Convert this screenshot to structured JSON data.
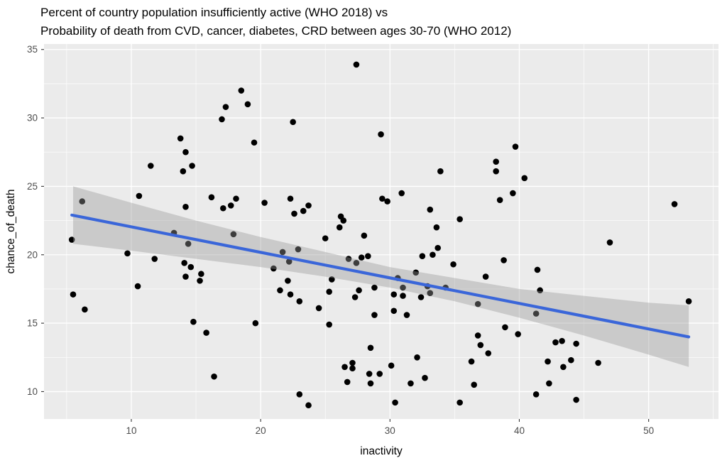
{
  "page": {
    "background": "#FFFFFF"
  },
  "chart_data": {
    "type": "scatter",
    "title_line1": "Percent of country population insufficiently active (WHO 2018) vs",
    "title_line2": "Probability of death from CVD, cancer, diabetes, CRD between ages 30-70 (WHO 2012)",
    "xlabel": "inactivity",
    "ylabel": "chance_of_death",
    "xlim": [
      3.25,
      55.4
    ],
    "ylim": [
      8.0,
      35.4
    ],
    "x_ticks": [
      10,
      20,
      30,
      40,
      50
    ],
    "x_minor_ticks": [
      5,
      15,
      25,
      35,
      45,
      55
    ],
    "y_ticks": [
      10,
      15,
      20,
      25,
      30,
      35
    ],
    "y_minor_ticks": [
      12.5,
      17.5,
      22.5,
      27.5,
      32.5
    ],
    "grid": true,
    "legend": "none",
    "colors": {
      "panel_background": "#EBEBEB",
      "grid": "#FFFFFF",
      "point": "#000000",
      "trend_line": "#3A66D9",
      "ci_band": "rgba(153,153,153,0.40)",
      "tick_label": "#4D4D4D",
      "title": "#000000"
    },
    "point_radius": 4.3,
    "points": [
      [
        13.8,
        28.5
      ],
      [
        14.2,
        27.5
      ],
      [
        11.5,
        26.5
      ],
      [
        14.0,
        26.1
      ],
      [
        14.7,
        26.5
      ],
      [
        27.4,
        33.9
      ],
      [
        18.5,
        32.0
      ],
      [
        19.0,
        31.0
      ],
      [
        17.3,
        30.8
      ],
      [
        17.0,
        29.9
      ],
      [
        22.5,
        29.7
      ],
      [
        19.5,
        28.2
      ],
      [
        29.3,
        28.8
      ],
      [
        39.7,
        27.9
      ],
      [
        38.2,
        26.8
      ],
      [
        38.2,
        26.1
      ],
      [
        33.9,
        26.1
      ],
      [
        40.4,
        25.6
      ],
      [
        6.2,
        23.9
      ],
      [
        10.6,
        24.3
      ],
      [
        14.2,
        23.5
      ],
      [
        5.4,
        21.1
      ],
      [
        13.3,
        21.6
      ],
      [
        14.4,
        20.8
      ],
      [
        9.7,
        20.1
      ],
      [
        11.8,
        19.7
      ],
      [
        14.1,
        19.4
      ],
      [
        14.6,
        19.1
      ],
      [
        14.2,
        18.4
      ],
      [
        15.4,
        18.6
      ],
      [
        15.3,
        18.1
      ],
      [
        10.5,
        17.7
      ],
      [
        5.5,
        17.1
      ],
      [
        16.2,
        24.2
      ],
      [
        18.1,
        24.1
      ],
      [
        17.7,
        23.6
      ],
      [
        17.1,
        23.4
      ],
      [
        20.3,
        23.8
      ],
      [
        22.3,
        24.1
      ],
      [
        23.7,
        23.6
      ],
      [
        22.6,
        23.0
      ],
      [
        23.3,
        23.2
      ],
      [
        26.2,
        22.8
      ],
      [
        26.4,
        22.5
      ],
      [
        26.1,
        22.0
      ],
      [
        28.0,
        21.4
      ],
      [
        17.9,
        21.5
      ],
      [
        25.0,
        21.2
      ],
      [
        22.9,
        20.4
      ],
      [
        21.7,
        20.2
      ],
      [
        22.2,
        19.5
      ],
      [
        21.0,
        19.0
      ],
      [
        26.8,
        19.7
      ],
      [
        27.8,
        19.8
      ],
      [
        28.3,
        19.9
      ],
      [
        27.4,
        19.4
      ],
      [
        25.5,
        18.2
      ],
      [
        22.1,
        18.1
      ],
      [
        21.5,
        17.4
      ],
      [
        22.3,
        17.1
      ],
      [
        25.3,
        17.3
      ],
      [
        27.6,
        17.4
      ],
      [
        28.8,
        17.6
      ],
      [
        27.3,
        16.9
      ],
      [
        30.9,
        24.5
      ],
      [
        29.4,
        24.1
      ],
      [
        29.8,
        23.9
      ],
      [
        39.5,
        24.5
      ],
      [
        38.5,
        24.0
      ],
      [
        33.1,
        23.3
      ],
      [
        35.4,
        22.6
      ],
      [
        33.6,
        22.0
      ],
      [
        33.7,
        20.5
      ],
      [
        32.5,
        19.9
      ],
      [
        33.3,
        20.0
      ],
      [
        34.9,
        19.3
      ],
      [
        38.8,
        19.6
      ],
      [
        32.0,
        18.7
      ],
      [
        37.4,
        18.4
      ],
      [
        41.4,
        18.9
      ],
      [
        30.6,
        18.3
      ],
      [
        32.9,
        17.7
      ],
      [
        31.0,
        17.6
      ],
      [
        34.3,
        17.6
      ],
      [
        41.6,
        17.4
      ],
      [
        30.3,
        17.1
      ],
      [
        31.0,
        17.0
      ],
      [
        33.1,
        17.2
      ],
      [
        32.4,
        16.9
      ],
      [
        52.0,
        23.7
      ],
      [
        47.0,
        20.9
      ],
      [
        6.4,
        16.0
      ],
      [
        14.8,
        15.1
      ],
      [
        15.8,
        14.3
      ],
      [
        16.4,
        11.1
      ],
      [
        23.0,
        16.6
      ],
      [
        24.5,
        16.1
      ],
      [
        28.8,
        15.6
      ],
      [
        19.6,
        15.0
      ],
      [
        25.3,
        14.9
      ],
      [
        28.5,
        13.2
      ],
      [
        26.5,
        11.8
      ],
      [
        27.1,
        12.1
      ],
      [
        27.1,
        11.7
      ],
      [
        28.4,
        11.3
      ],
      [
        26.7,
        10.7
      ],
      [
        28.5,
        10.6
      ],
      [
        23.0,
        9.8
      ],
      [
        23.7,
        9.0
      ],
      [
        36.8,
        16.4
      ],
      [
        41.3,
        15.7
      ],
      [
        30.3,
        15.9
      ],
      [
        31.3,
        15.6
      ],
      [
        38.9,
        14.7
      ],
      [
        39.9,
        14.2
      ],
      [
        36.8,
        14.1
      ],
      [
        37.0,
        13.4
      ],
      [
        37.6,
        12.8
      ],
      [
        32.1,
        12.5
      ],
      [
        30.1,
        11.9
      ],
      [
        29.2,
        11.3
      ],
      [
        32.7,
        11.0
      ],
      [
        31.6,
        10.6
      ],
      [
        36.3,
        12.2
      ],
      [
        36.5,
        10.5
      ],
      [
        41.3,
        9.8
      ],
      [
        30.4,
        9.2
      ],
      [
        35.4,
        9.2
      ],
      [
        53.1,
        16.6
      ],
      [
        42.8,
        13.6
      ],
      [
        43.3,
        13.7
      ],
      [
        44.4,
        13.5
      ],
      [
        42.2,
        12.2
      ],
      [
        44.0,
        12.3
      ],
      [
        43.4,
        11.8
      ],
      [
        46.1,
        12.1
      ],
      [
        42.3,
        10.6
      ],
      [
        44.4,
        9.4
      ]
    ],
    "trend_line": {
      "x1": 5.4,
      "y1": 22.9,
      "x2": 53.1,
      "y2": 14.0
    },
    "ci_band": {
      "x": [
        5.5,
        10,
        15,
        20,
        25,
        30,
        35,
        40,
        45,
        50,
        53.1
      ],
      "upper": [
        25.0,
        23.8,
        22.5,
        21.3,
        20.2,
        19.1,
        18.3,
        17.5,
        17.0,
        16.5,
        16.3
      ],
      "lower": [
        20.8,
        20.3,
        19.7,
        19.1,
        18.4,
        17.6,
        16.6,
        15.4,
        14.1,
        12.7,
        11.8
      ]
    }
  }
}
